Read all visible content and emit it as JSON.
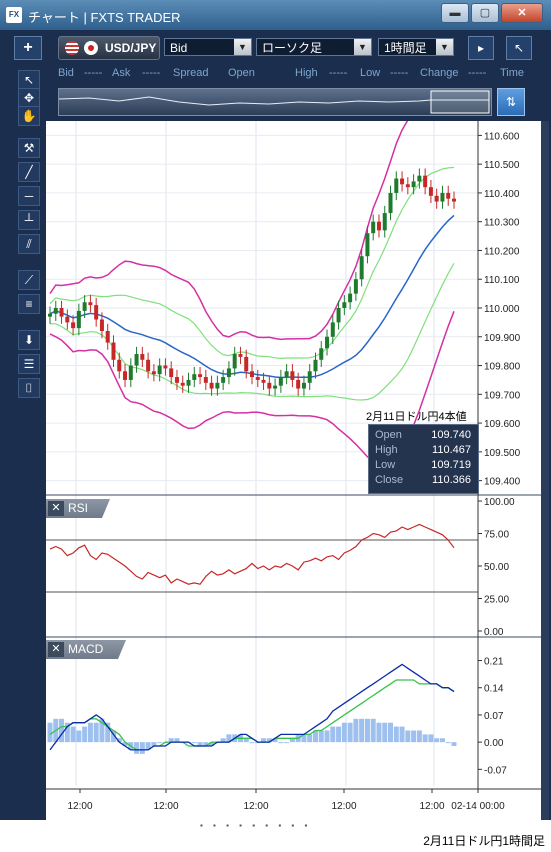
{
  "window": {
    "title": "チャート | FXTS TRADER",
    "app_icon": "fx-app-icon",
    "buttons": [
      "minimize",
      "maximize",
      "close"
    ]
  },
  "toolbar": {
    "add_label": "+",
    "symbol": "USD/JPY",
    "price_type": "Bid",
    "chart_type": "ローソク足",
    "timeframe": "1時間足",
    "right_icons": [
      "panel-toggle-icon",
      "restore-arrow-icon"
    ]
  },
  "infobar": {
    "bid_label": "Bid",
    "bid_value": "-----",
    "ask_label": "Ask",
    "ask_value": "-----",
    "spread_label": "Spread",
    "open_label": "Open",
    "high_label": "High",
    "high_value": "-----",
    "low_label": "Low",
    "low_value": "-----",
    "change_label": "Change",
    "change_value": "-----",
    "time_label": "Time"
  },
  "sidebar": {
    "tools": [
      "cursor-icon",
      "crosshair-cursor-icon",
      "hand-icon",
      "hammer-icon",
      "trendline-icon",
      "horizontal-line-icon",
      "vertical-line-icon",
      "channel-icon",
      "fan-icon",
      "fibonacci-icon",
      "download-icon",
      "list-icon",
      "camera-icon"
    ]
  },
  "price_panel": {
    "y_ticks": [
      "110.600",
      "110.500",
      "110.400",
      "110.300",
      "110.200",
      "110.100",
      "110.000",
      "109.900",
      "109.800",
      "109.700",
      "109.600",
      "109.500",
      "109.400"
    ],
    "ohlc_title": "2月11日ドル円4本値",
    "ohlc": [
      {
        "label": "Open",
        "value": "109.740"
      },
      {
        "label": "High",
        "value": "110.467"
      },
      {
        "label": "Low",
        "value": "109.719"
      },
      {
        "label": "Close",
        "value": "110.366"
      }
    ]
  },
  "rsi_panel": {
    "label": "RSI",
    "close_label": "✕",
    "y_ticks": [
      "100.00",
      "75.00",
      "50.00",
      "25.00",
      "0.00"
    ]
  },
  "macd_panel": {
    "label": "MACD",
    "close_label": "✕",
    "y_ticks": [
      "0.21",
      "0.14",
      "0.07",
      "0.00",
      "-0.07"
    ]
  },
  "x_axis": {
    "ticks": [
      "12:00",
      "12:00",
      "12:00",
      "12:00",
      "12:00",
      "02-14 00:00"
    ]
  },
  "caption": "2月11日ドル円1時間足",
  "colors": {
    "frame": "#1b2e4e",
    "bollinger_outer": "#d62fa3",
    "bollinger_inner": "#7fe07a",
    "ma": "#2a66c7",
    "candle_up": "#1e7b2e",
    "candle_down": "#c62828",
    "rsi_line": "#c62828",
    "macd_line": "#0a2aa8",
    "signal_line": "#35c24a",
    "histogram": "#9ec0ee"
  },
  "chart_data": [
    {
      "type": "line",
      "title": "",
      "xlabel": "",
      "ylabel": "",
      "ylim": [
        109.35,
        110.65
      ],
      "x": [
        0,
        1,
        2,
        3,
        4,
        5,
        6,
        7,
        8,
        9,
        10,
        11,
        12,
        13,
        14,
        15,
        16,
        17,
        18,
        19,
        20,
        21,
        22,
        23,
        24,
        25,
        26,
        27,
        28,
        29,
        30,
        31,
        32,
        33,
        34,
        35,
        36,
        37,
        38,
        39,
        40,
        41,
        42,
        43,
        44,
        45,
        46,
        47,
        48,
        49,
        50,
        51,
        52,
        53,
        54,
        55,
        56,
        57,
        58,
        59,
        60,
        61,
        62,
        63,
        64,
        65,
        66,
        67,
        68,
        69,
        70
      ],
      "series": [
        {
          "values": [
            109.98,
            110.0,
            109.97,
            109.95,
            109.93,
            109.99,
            110.02,
            110.01,
            109.96,
            109.92,
            109.88,
            109.82,
            109.78,
            109.75,
            109.8,
            109.84,
            109.82,
            109.78,
            109.77,
            109.8,
            109.79,
            109.76,
            109.74,
            109.73,
            109.75,
            109.77,
            109.76,
            109.74,
            109.72,
            109.74,
            109.76,
            109.79,
            109.84,
            109.83,
            109.78,
            109.76,
            109.75,
            109.74,
            109.72,
            109.73,
            109.76,
            109.78,
            109.75,
            109.72,
            109.74,
            109.78,
            109.82,
            109.86,
            109.9,
            109.95,
            110.0,
            110.02,
            110.05,
            110.1,
            110.18,
            110.26,
            110.3,
            110.27,
            110.33,
            110.4,
            110.45,
            110.43,
            110.42,
            110.44,
            110.46,
            110.42,
            110.39,
            110.37,
            110.4,
            110.38,
            110.37
          ]
        }
      ]
    },
    {
      "type": "line",
      "title": "",
      "ylabel": "",
      "ylim": [
        0,
        100
      ],
      "series": [
        {
          "values": [
            63,
            65,
            63,
            58,
            60,
            64,
            66,
            58,
            55,
            60,
            59,
            56,
            53,
            50,
            46,
            42,
            40,
            45,
            43,
            41,
            43,
            37,
            40,
            38,
            36,
            37,
            36,
            42,
            46,
            43,
            44,
            47,
            44,
            46,
            48,
            52,
            48,
            50,
            47,
            50,
            49,
            52,
            50,
            47,
            53,
            54,
            56,
            54,
            57,
            58,
            55,
            60,
            62,
            65,
            70,
            72,
            75,
            74,
            72,
            76,
            77,
            80,
            78,
            80,
            82,
            80,
            78,
            76,
            74,
            70,
            64
          ]
        }
      ]
    },
    {
      "type": "bar",
      "title": "",
      "ylabel": "",
      "ylim": [
        -0.1,
        0.25
      ],
      "series": [
        {
          "values": [
            0.05,
            0.06,
            0.06,
            0.05,
            0.04,
            0.03,
            0.04,
            0.05,
            0.05,
            0.06,
            0.05,
            0.03,
            0.01,
            -0.01,
            -0.02,
            -0.03,
            -0.03,
            -0.02,
            -0.01,
            0.0,
            0.0,
            0.01,
            0.01,
            0.0,
            0.0,
            0.0,
            -0.01,
            -0.01,
            -0.01,
            0.0,
            0.01,
            0.02,
            0.02,
            0.02,
            0.01,
            0.0,
            0.0,
            0.01,
            0.01,
            0.01,
            0.0,
            0.0,
            0.01,
            0.02,
            0.02,
            0.02,
            0.03,
            0.03,
            0.03,
            0.04,
            0.04,
            0.05,
            0.05,
            0.06,
            0.06,
            0.06,
            0.06,
            0.05,
            0.05,
            0.05,
            0.04,
            0.04,
            0.03,
            0.03,
            0.03,
            0.02,
            0.02,
            0.01,
            0.01,
            0.0,
            -0.01
          ]
        },
        {
          "values": [
            0.02,
            0.03,
            0.04,
            0.04,
            0.05,
            0.05,
            0.05,
            0.06,
            0.06,
            0.05,
            0.04,
            0.03,
            0.02,
            0.0,
            -0.01,
            -0.02,
            -0.02,
            -0.02,
            -0.01,
            -0.01,
            0.0,
            0.0,
            0.0,
            0.0,
            -0.01,
            -0.01,
            -0.01,
            -0.01,
            0.0,
            0.0,
            0.0,
            0.0,
            0.01,
            0.01,
            0.01,
            0.01,
            0.0,
            0.0,
            0.0,
            0.01,
            0.01,
            0.01,
            0.01,
            0.01,
            0.02,
            0.02,
            0.03,
            0.03,
            0.04,
            0.05,
            0.06,
            0.07,
            0.08,
            0.09,
            0.1,
            0.11,
            0.12,
            0.13,
            0.14,
            0.15,
            0.16,
            0.16,
            0.16,
            0.16,
            0.15,
            0.15,
            0.15,
            0.15,
            0.14,
            0.14,
            0.13
          ]
        },
        {
          "values": [
            -0.02,
            0.0,
            0.02,
            0.04,
            0.05,
            0.05,
            0.05,
            0.06,
            0.07,
            0.06,
            0.04,
            0.02,
            0.0,
            -0.01,
            -0.02,
            -0.02,
            -0.02,
            -0.02,
            -0.01,
            -0.01,
            -0.01,
            0.0,
            0.0,
            0.0,
            0.0,
            -0.01,
            -0.01,
            -0.01,
            -0.01,
            0.0,
            0.0,
            0.0,
            0.01,
            0.02,
            0.02,
            0.01,
            0.0,
            0.0,
            0.0,
            0.01,
            0.02,
            0.02,
            0.02,
            0.02,
            0.02,
            0.03,
            0.04,
            0.05,
            0.06,
            0.08,
            0.09,
            0.1,
            0.11,
            0.12,
            0.13,
            0.14,
            0.15,
            0.16,
            0.17,
            0.18,
            0.19,
            0.2,
            0.19,
            0.18,
            0.17,
            0.16,
            0.15,
            0.15,
            0.14,
            0.14,
            0.13
          ]
        }
      ]
    }
  ]
}
